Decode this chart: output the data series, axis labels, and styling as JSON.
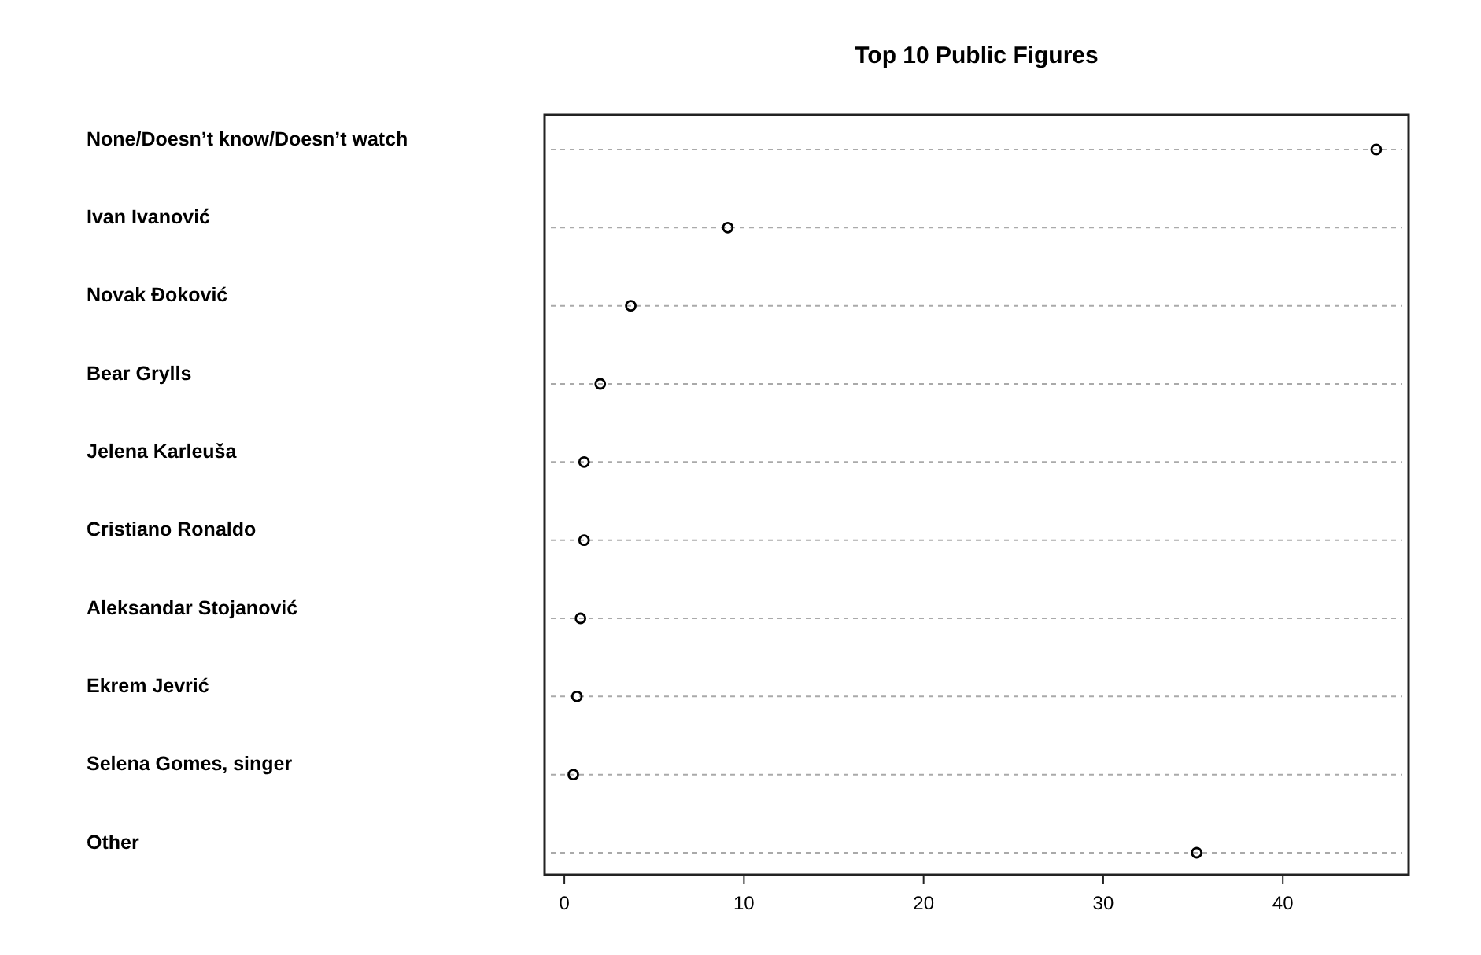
{
  "chart_data": {
    "type": "scatter",
    "title": "Top 10 Public Figures",
    "orientation": "horizontal",
    "categories": [
      "None/Doesn’t know/Doesn’t watch",
      "Ivan Ivanović",
      "Novak Đoković",
      "Bear Grylls",
      "Jelena Karleuša",
      "Cristiano Ronaldo",
      "Aleksandar Stojanović",
      "Ekrem Jevrić",
      "Selena Gomes, singer",
      "Other"
    ],
    "values": [
      45.2,
      9.1,
      3.7,
      2.0,
      1.1,
      1.1,
      0.9,
      0.7,
      0.5,
      35.2
    ],
    "color": "#000000",
    "marker": "circle",
    "grid": "y",
    "xlim": [
      -1.1,
      47
    ],
    "xticks": [
      0,
      10,
      20,
      30,
      40
    ]
  }
}
